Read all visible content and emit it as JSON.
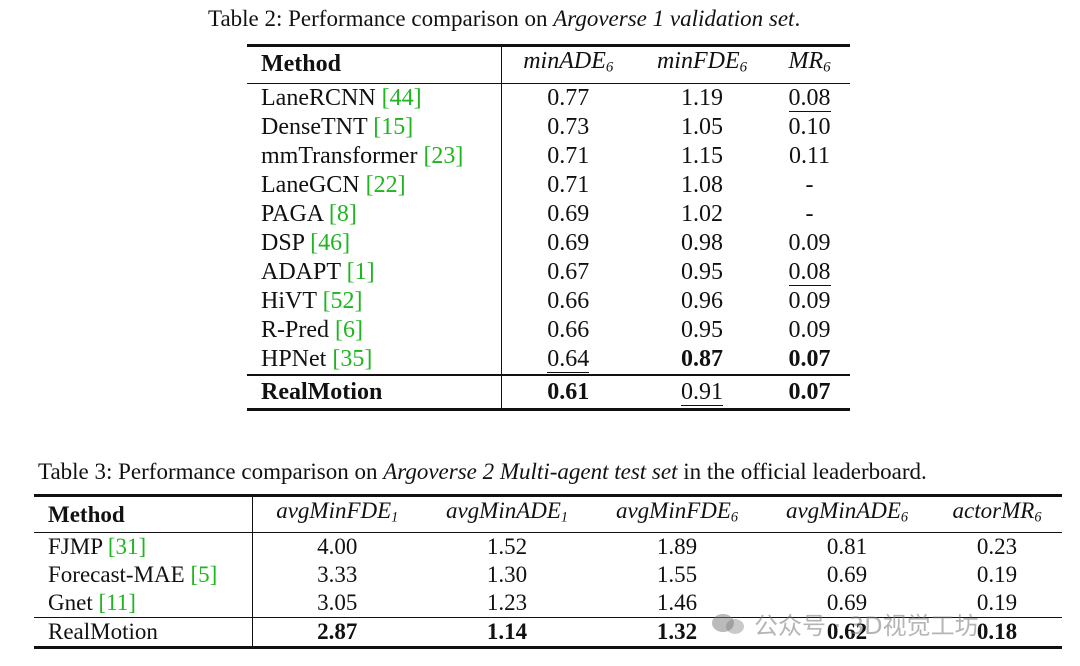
{
  "table2": {
    "caption_prefix": "Table 2: Performance comparison on ",
    "caption_italic": "Argoverse 1 validation set",
    "caption_suffix": ".",
    "headers": [
      {
        "base": "Method",
        "sub": ""
      },
      {
        "base": "minADE",
        "sub": "6"
      },
      {
        "base": "minFDE",
        "sub": "6"
      },
      {
        "base": "MR",
        "sub": "6"
      }
    ],
    "rows": [
      {
        "method": "LaneRCNN",
        "ref": "[44]",
        "v": [
          "0.77",
          "1.19",
          "0.08"
        ],
        "bold": [
          false,
          false,
          false
        ],
        "ul": [
          false,
          false,
          true
        ]
      },
      {
        "method": "DenseTNT",
        "ref": "[15]",
        "v": [
          "0.73",
          "1.05",
          "0.10"
        ],
        "bold": [
          false,
          false,
          false
        ],
        "ul": [
          false,
          false,
          false
        ]
      },
      {
        "method": "mmTransformer",
        "ref": "[23]",
        "v": [
          "0.71",
          "1.15",
          "0.11"
        ],
        "bold": [
          false,
          false,
          false
        ],
        "ul": [
          false,
          false,
          false
        ]
      },
      {
        "method": "LaneGCN",
        "ref": "[22]",
        "v": [
          "0.71",
          "1.08",
          "-"
        ],
        "bold": [
          false,
          false,
          false
        ],
        "ul": [
          false,
          false,
          false
        ]
      },
      {
        "method": "PAGA",
        "ref": "[8]",
        "v": [
          "0.69",
          "1.02",
          "-"
        ],
        "bold": [
          false,
          false,
          false
        ],
        "ul": [
          false,
          false,
          false
        ]
      },
      {
        "method": "DSP",
        "ref": "[46]",
        "v": [
          "0.69",
          "0.98",
          "0.09"
        ],
        "bold": [
          false,
          false,
          false
        ],
        "ul": [
          false,
          false,
          false
        ]
      },
      {
        "method": "ADAPT",
        "ref": "[1]",
        "v": [
          "0.67",
          "0.95",
          "0.08"
        ],
        "bold": [
          false,
          false,
          false
        ],
        "ul": [
          false,
          false,
          true
        ]
      },
      {
        "method": "HiVT",
        "ref": "[52]",
        "v": [
          "0.66",
          "0.96",
          "0.09"
        ],
        "bold": [
          false,
          false,
          false
        ],
        "ul": [
          false,
          false,
          false
        ]
      },
      {
        "method": "R-Pred",
        "ref": "[6]",
        "v": [
          "0.66",
          "0.95",
          "0.09"
        ],
        "bold": [
          false,
          false,
          false
        ],
        "ul": [
          false,
          false,
          false
        ]
      },
      {
        "method": "HPNet",
        "ref": "[35]",
        "v": [
          "0.64",
          "0.87",
          "0.07"
        ],
        "bold": [
          false,
          true,
          true
        ],
        "ul": [
          true,
          false,
          false
        ]
      }
    ],
    "final": {
      "method": "RealMotion",
      "v": [
        "0.61",
        "0.91",
        "0.07"
      ],
      "bold": [
        true,
        false,
        true
      ],
      "ul": [
        false,
        true,
        false
      ]
    }
  },
  "table3": {
    "caption_prefix": "Table 3: Performance comparison on ",
    "caption_italic": "Argoverse 2 Multi-agent test set",
    "caption_suffix": " in the official leaderboard.",
    "headers": [
      {
        "base": "Method",
        "sub": ""
      },
      {
        "base": "avgMinFDE",
        "sub": "1"
      },
      {
        "base": "avgMinADE",
        "sub": "1"
      },
      {
        "base": "avgMinFDE",
        "sub": "6"
      },
      {
        "base": "avgMinADE",
        "sub": "6"
      },
      {
        "base": "actorMR",
        "sub": "6"
      }
    ],
    "rows": [
      {
        "method": "FJMP",
        "ref": "[31]",
        "v": [
          "4.00",
          "1.52",
          "1.89",
          "0.81",
          "0.23"
        ]
      },
      {
        "method": "Forecast-MAE",
        "ref": "[5]",
        "v": [
          "3.33",
          "1.30",
          "1.55",
          "0.69",
          "0.19"
        ]
      },
      {
        "method": "Gnet",
        "ref": "[11]",
        "v": [
          "3.05",
          "1.23",
          "1.46",
          "0.69",
          "0.19"
        ]
      }
    ],
    "final": {
      "method": "RealMotion",
      "v": [
        "2.87",
        "1.14",
        "1.32",
        "0.62",
        "0.18"
      ]
    }
  },
  "watermark": {
    "text": "公众号 · 3D视觉工坊"
  }
}
